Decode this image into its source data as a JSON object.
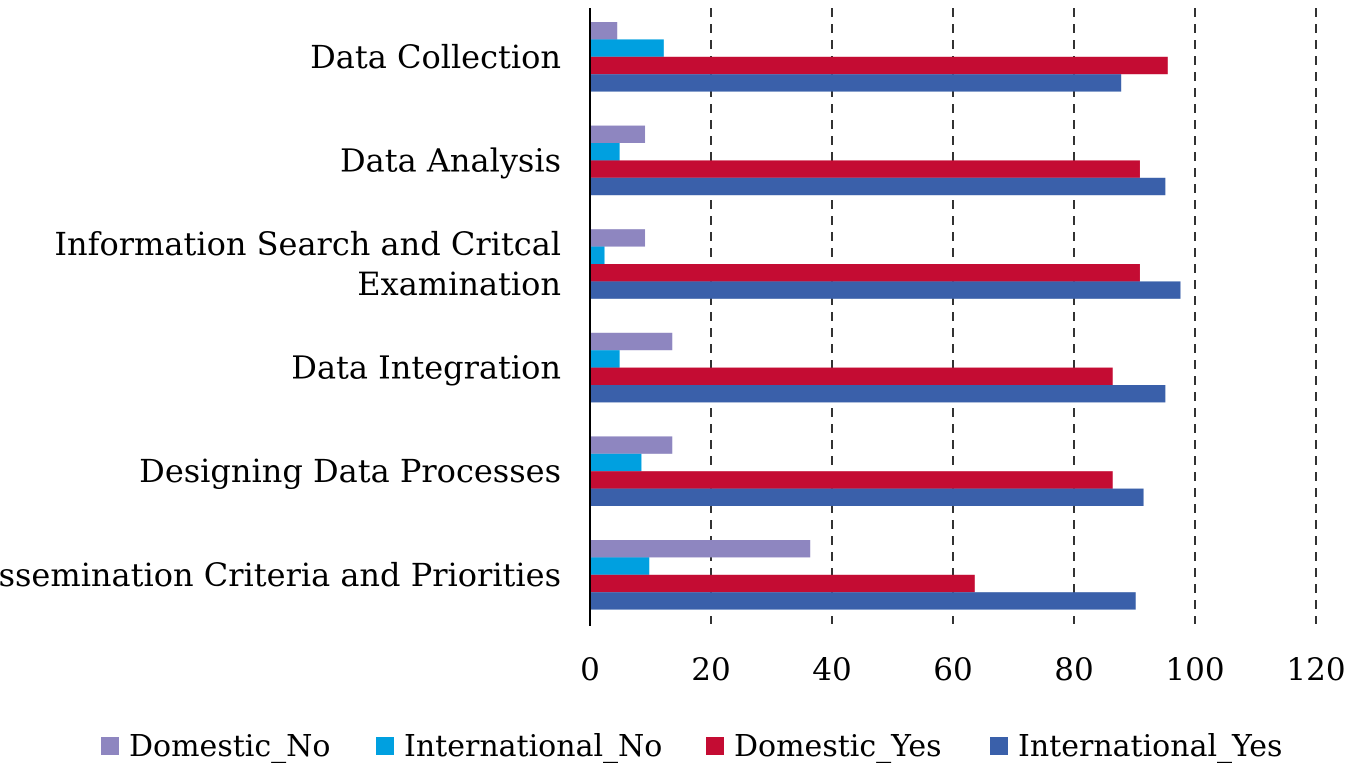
{
  "chart_data": {
    "type": "bar",
    "orientation": "horizontal",
    "title": "",
    "xlabel": "",
    "ylabel": "",
    "xlim": [
      0,
      120
    ],
    "xticks": [
      0,
      20,
      40,
      60,
      80,
      100,
      120
    ],
    "grid": "vertical-dashed",
    "legend_position": "bottom",
    "categories": [
      [
        "Data Collection"
      ],
      [
        "Data Analysis"
      ],
      [
        "Information Search and Critcal",
        "Examination"
      ],
      [
        "Data Integration"
      ],
      [
        "Designing Data Processes"
      ],
      [
        "Dissemination Criteria and Priorities"
      ]
    ],
    "series": [
      {
        "name": "Domestic_No",
        "color": "#8E86C0",
        "values": [
          4.5,
          9.1,
          9.1,
          13.6,
          13.6,
          36.4
        ]
      },
      {
        "name": "International_No",
        "color": "#00A0E0",
        "values": [
          12.2,
          4.9,
          2.4,
          4.9,
          8.5,
          9.8
        ]
      },
      {
        "name": "Domestic_Yes",
        "color": "#C40C33",
        "values": [
          95.5,
          90.9,
          90.9,
          86.4,
          86.4,
          63.6
        ]
      },
      {
        "name": "International_Yes",
        "color": "#3A60AA",
        "values": [
          87.8,
          95.1,
          97.6,
          95.1,
          91.5,
          90.2
        ]
      }
    ]
  }
}
